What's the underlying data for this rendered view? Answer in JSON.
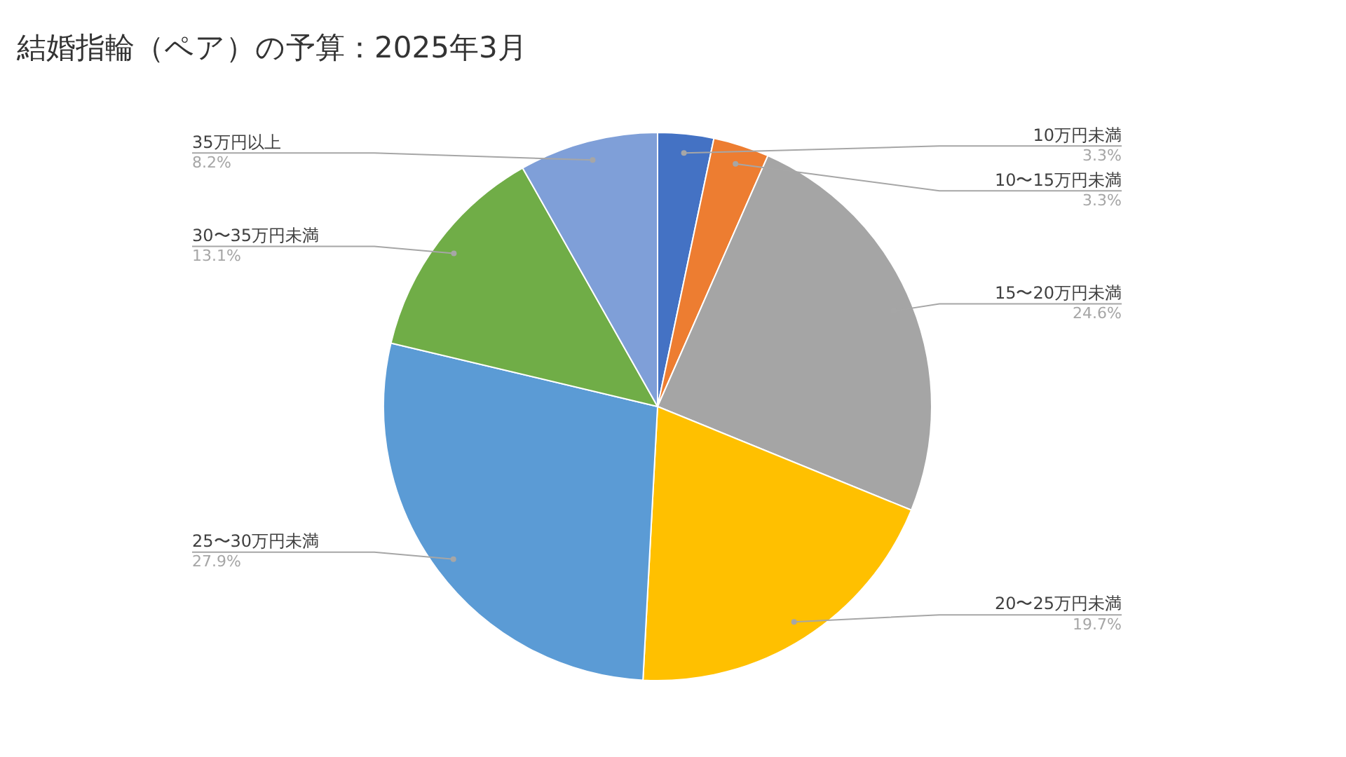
{
  "chart_data": {
    "type": "pie",
    "title": "結婚指輪（ペア）の予算：2025年3月",
    "categories": [
      "10万円未満",
      "10〜15万円未満",
      "15〜20万円未満",
      "20〜25万円未満",
      "25〜30万円未満",
      "30〜35万円未満",
      "35万円以上"
    ],
    "values": [
      3.3,
      3.3,
      24.6,
      19.7,
      27.9,
      13.1,
      8.2
    ],
    "colors": [
      "#4472c4",
      "#ed7d31",
      "#a5a5a5",
      "#ffc000",
      "#5b9bd5",
      "#70ad47",
      "#7f9fd8"
    ],
    "value_labels": [
      "3.3%",
      "3.3%",
      "24.6%",
      "19.7%",
      "27.9%",
      "13.1%",
      "8.2%"
    ],
    "legend": false
  }
}
